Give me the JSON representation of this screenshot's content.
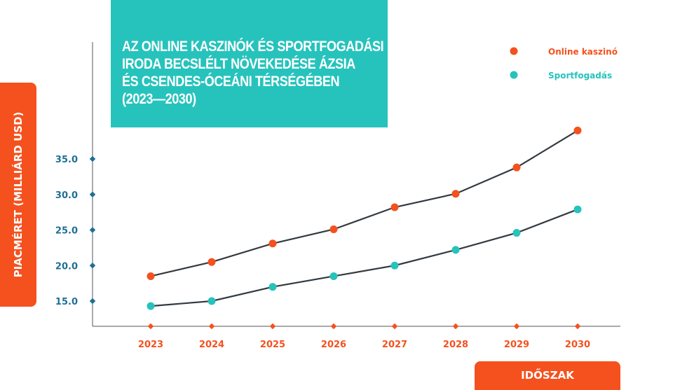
{
  "chart_data": {
    "type": "line",
    "title": "AZ ONLINE KASZINÓK ÉS SPORTFOGADÁSI IRODA BECSLÉLT NÖVEKEDÉSE ÁZSIA ÉS CSENDES-ÓCEÁNI TÉRSÉGÉBEN (2023—2030)",
    "title_lines": [
      "AZ ONLINE KASZINÓK ÉS SPORTFOGADÁSI",
      "IRODA BECSLÉLT NÖVEKEDÉSE ÁZSIA",
      "ÉS CSENDES-ÓCEÁNI TÉRSÉGÉBEN",
      "(2023—2030)"
    ],
    "xlabel": "IDŐSZAK",
    "ylabel": "PIACMÉRET (MILLIÁRD USD)",
    "categories": [
      "2023",
      "2024",
      "2025",
      "2026",
      "2027",
      "2028",
      "2029",
      "2030"
    ],
    "yticks": [
      "15.0",
      "20.0",
      "25.0",
      "30.0",
      "35.0"
    ],
    "ytick_values": [
      15,
      20,
      25,
      30,
      35
    ],
    "ylim": [
      11.4,
      39.5
    ],
    "grid": false,
    "legend_placement": "top-right",
    "series": [
      {
        "name": "Online kaszinó",
        "color": "#f4511e",
        "values": [
          18.5,
          20.5,
          23.1,
          25.1,
          28.2,
          30.1,
          33.8,
          39.0
        ]
      },
      {
        "name": "Sportfogadás",
        "color": "#26c3bc",
        "values": [
          14.3,
          15.0,
          17.0,
          18.5,
          20.0,
          22.2,
          24.6,
          27.9
        ]
      }
    ],
    "colors": {
      "line": "#333a40",
      "ytick": "#1f6f94",
      "xtick": "#f4511e"
    }
  }
}
